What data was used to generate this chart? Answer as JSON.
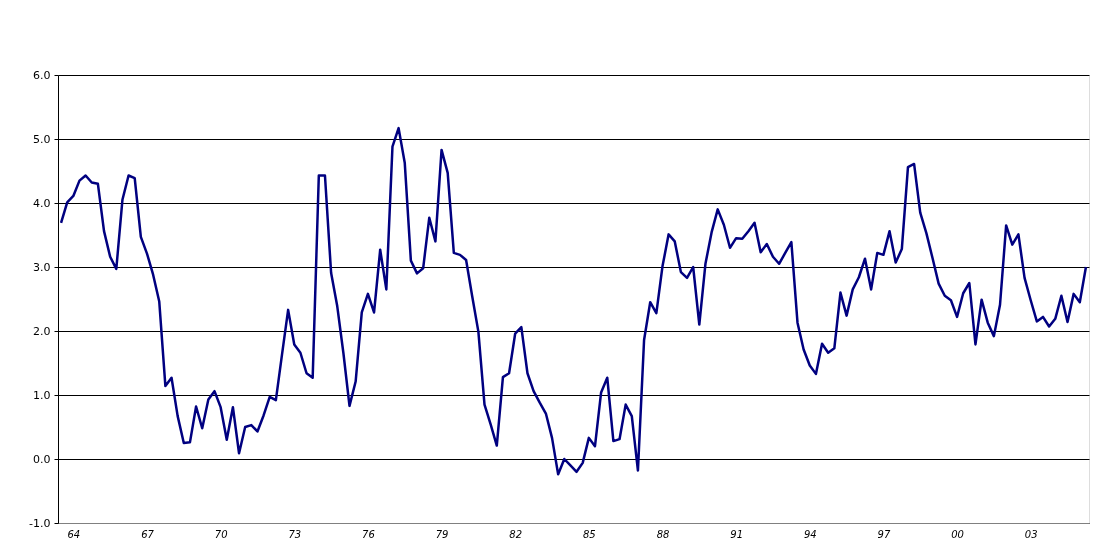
{
  "chart_data": {
    "type": "line",
    "categories": [
      null,
      null,
      "64",
      null,
      null,
      null,
      null,
      null,
      null,
      null,
      null,
      null,
      null,
      null,
      "67",
      null,
      null,
      null,
      null,
      null,
      null,
      null,
      null,
      null,
      null,
      null,
      "70",
      null,
      null,
      null,
      null,
      null,
      null,
      null,
      null,
      null,
      null,
      null,
      "73",
      null,
      null,
      null,
      null,
      null,
      null,
      null,
      null,
      null,
      null,
      null,
      "76",
      null,
      null,
      null,
      null,
      null,
      null,
      null,
      null,
      null,
      null,
      null,
      "79",
      null,
      null,
      null,
      null,
      null,
      null,
      null,
      null,
      null,
      null,
      null,
      "82",
      null,
      null,
      null,
      null,
      null,
      null,
      null,
      null,
      null,
      null,
      null,
      "85",
      null,
      null,
      null,
      null,
      null,
      null,
      null,
      null,
      null,
      null,
      null,
      "88",
      null,
      null,
      null,
      null,
      null,
      null,
      null,
      null,
      null,
      null,
      null,
      "91",
      null,
      null,
      null,
      null,
      null,
      null,
      null,
      null,
      null,
      null,
      null,
      "94",
      null,
      null,
      null,
      null,
      null,
      null,
      null,
      null,
      null,
      null,
      null,
      "97",
      null,
      null,
      null,
      null,
      null,
      null,
      null,
      null,
      null,
      null,
      null,
      "00",
      null,
      null,
      null,
      null,
      null,
      null,
      null,
      null,
      null,
      null,
      null,
      "03",
      null,
      null,
      null,
      null,
      null,
      null,
      null,
      null,
      null
    ],
    "series": [
      {
        "color": "#000080",
        "values": [
          3.69,
          4.01,
          4.11,
          4.35,
          4.43,
          4.32,
          4.3,
          3.56,
          3.16,
          2.97,
          4.05,
          4.43,
          4.39,
          3.47,
          3.21,
          2.88,
          2.46,
          1.14,
          1.27,
          0.67,
          0.25,
          0.26,
          0.82,
          0.48,
          0.93,
          1.06,
          0.81,
          0.3,
          0.81,
          0.09,
          0.5,
          0.53,
          0.43,
          0.68,
          0.97,
          0.92,
          1.63,
          2.33,
          1.79,
          1.66,
          1.34,
          1.27,
          4.43,
          4.43,
          2.91,
          2.39,
          1.66,
          0.83,
          1.21,
          2.29,
          2.58,
          2.29,
          3.27,
          2.65,
          4.88,
          5.17,
          4.63,
          3.1,
          2.9,
          2.98,
          3.77,
          3.4,
          4.83,
          4.47,
          3.22,
          3.19,
          3.11,
          2.54,
          1.99,
          0.85,
          0.54,
          0.21,
          1.28,
          1.34,
          1.96,
          2.06,
          1.34,
          1.06,
          0.88,
          0.71,
          0.33,
          -0.24,
          0.0,
          -0.1,
          -0.2,
          -0.06,
          0.33,
          0.2,
          1.04,
          1.27,
          0.28,
          0.31,
          0.85,
          0.67,
          -0.18,
          1.86,
          2.45,
          2.28,
          3.01,
          3.51,
          3.4,
          2.92,
          2.83,
          3.0,
          2.1,
          3.05,
          3.54,
          3.9,
          3.66,
          3.3,
          3.45,
          3.44,
          3.56,
          3.69,
          3.23,
          3.36,
          3.16,
          3.05,
          3.22,
          3.39,
          2.13,
          1.71,
          1.46,
          1.33,
          1.8,
          1.66,
          1.73,
          2.6,
          2.24,
          2.65,
          2.84,
          3.13,
          2.65,
          3.22,
          3.19,
          3.56,
          3.07,
          3.28,
          4.56,
          4.61,
          3.85,
          3.53,
          3.14,
          2.74,
          2.55,
          2.48,
          2.22,
          2.59,
          2.75,
          1.79,
          2.49,
          2.13,
          1.92,
          2.41,
          3.65,
          3.35,
          3.51,
          2.83,
          2.48,
          2.15,
          2.22,
          2.07,
          2.19,
          2.55,
          2.14,
          2.58,
          2.45,
          3.0
        ]
      }
    ],
    "ylim": [
      -1.0,
      6.0
    ],
    "yticks": [
      {
        "value": -1,
        "label": "-1.0"
      },
      {
        "value": 0,
        "label": "0.0"
      },
      {
        "value": 1,
        "label": "1.0"
      },
      {
        "value": 2,
        "label": "2.0"
      },
      {
        "value": 3,
        "label": "3.0"
      },
      {
        "value": 4,
        "label": "4.0"
      },
      {
        "value": 5,
        "label": "5.0"
      },
      {
        "value": 6,
        "label": "6.0"
      }
    ],
    "grid": "y",
    "marker": "none",
    "line_style": "solid"
  }
}
